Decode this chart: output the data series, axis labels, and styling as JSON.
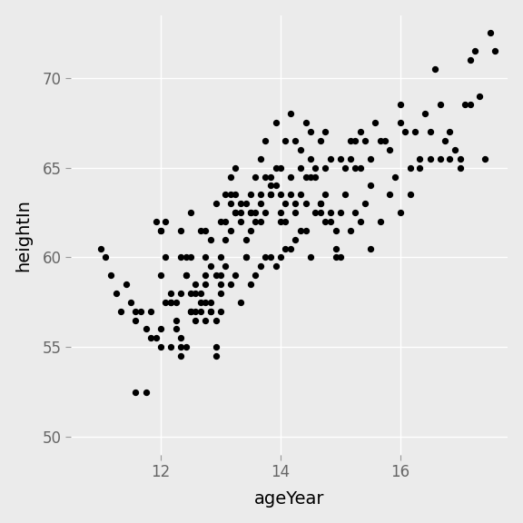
{
  "title": "",
  "xlabel": "ageYear",
  "ylabel": "heightIn",
  "xlim": [
    10.5,
    17.8
  ],
  "ylim": [
    49,
    73.5
  ],
  "xticks": [
    12,
    14,
    16
  ],
  "yticks": [
    50,
    55,
    60,
    65,
    70
  ],
  "background_color": "#EBEBEB",
  "grid_color": "#FFFFFF",
  "dot_color": "#000000",
  "dot_size": 18,
  "x": [
    11.58,
    11.58,
    11.75,
    11.83,
    11.92,
    12.0,
    12.0,
    12.0,
    12.08,
    12.08,
    12.17,
    12.17,
    12.17,
    12.25,
    12.25,
    12.33,
    12.33,
    12.33,
    12.33,
    12.42,
    12.42,
    12.42,
    12.5,
    12.5,
    12.5,
    12.5,
    12.58,
    12.58,
    12.58,
    12.67,
    12.67,
    12.67,
    12.75,
    12.75,
    12.75,
    12.75,
    12.83,
    12.83,
    12.83,
    12.83,
    12.92,
    12.92,
    12.92,
    12.92,
    13.0,
    13.0,
    13.0,
    13.0,
    13.0,
    13.08,
    13.08,
    13.08,
    13.17,
    13.17,
    13.17,
    13.17,
    13.25,
    13.25,
    13.25,
    13.25,
    13.33,
    13.33,
    13.33,
    13.42,
    13.42,
    13.42,
    13.5,
    13.5,
    13.5,
    13.5,
    13.58,
    13.58,
    13.58,
    13.67,
    13.67,
    13.67,
    13.67,
    13.75,
    13.75,
    13.75,
    13.83,
    13.83,
    13.83,
    13.83,
    13.92,
    13.92,
    13.92,
    14.0,
    14.0,
    14.0,
    14.0,
    14.08,
    14.08,
    14.08,
    14.17,
    14.17,
    14.17,
    14.25,
    14.25,
    14.25,
    14.33,
    14.33,
    14.33,
    14.42,
    14.42,
    14.42,
    14.5,
    14.5,
    14.5,
    14.58,
    14.58,
    14.67,
    14.67,
    14.67,
    14.75,
    14.75,
    14.75,
    14.83,
    14.83,
    14.92,
    14.92,
    15.0,
    15.0,
    15.08,
    15.08,
    15.17,
    15.17,
    15.25,
    15.25,
    15.33,
    15.33,
    15.42,
    15.42,
    15.5,
    15.5,
    15.58,
    15.67,
    15.75,
    15.83,
    15.92,
    16.0,
    16.0,
    16.08,
    16.17,
    16.25,
    16.33,
    16.42,
    16.5,
    16.58,
    16.67,
    16.75,
    16.83,
    16.92,
    17.0,
    17.08,
    17.17,
    17.25,
    17.33,
    17.5,
    17.58,
    11.0,
    11.08,
    11.17,
    11.25,
    11.33,
    11.42,
    11.5,
    11.58,
    11.67,
    11.75,
    11.83,
    11.92,
    12.0,
    12.0,
    12.08,
    12.17,
    12.25,
    12.33,
    12.33,
    12.42,
    12.5,
    12.58,
    12.67,
    12.75,
    12.75,
    12.83,
    12.92,
    13.0,
    13.08,
    13.17,
    13.25,
    13.33,
    13.42,
    13.5,
    13.58,
    13.67,
    13.75,
    13.83,
    13.92,
    14.0,
    14.08,
    14.17,
    14.25,
    14.33,
    14.42,
    14.5,
    14.58,
    14.67,
    14.75,
    14.83,
    14.92,
    15.0,
    15.17,
    15.25,
    15.33,
    15.5,
    15.67,
    15.83,
    16.0,
    16.17,
    16.33,
    16.5,
    16.67,
    16.83,
    17.0,
    17.17,
    17.42
  ],
  "y": [
    57.0,
    52.5,
    52.5,
    57.0,
    62.0,
    61.5,
    61.5,
    59.0,
    60.0,
    62.0,
    57.5,
    57.5,
    58.0,
    57.5,
    56.0,
    60.0,
    61.5,
    55.0,
    58.0,
    59.0,
    59.0,
    60.0,
    57.0,
    60.0,
    62.5,
    57.0,
    58.0,
    57.0,
    56.5,
    61.5,
    58.0,
    57.0,
    61.5,
    60.0,
    59.0,
    58.5,
    61.0,
    57.5,
    59.5,
    57.0,
    55.0,
    54.5,
    63.0,
    59.0,
    60.0,
    62.0,
    59.0,
    58.0,
    57.0,
    63.5,
    62.0,
    61.0,
    64.5,
    61.5,
    63.0,
    63.5,
    63.5,
    65.0,
    62.5,
    62.5,
    62.0,
    63.0,
    62.5,
    63.0,
    60.0,
    61.0,
    61.5,
    62.5,
    63.5,
    62.5,
    64.5,
    62.5,
    62.0,
    65.5,
    63.0,
    63.5,
    62.0,
    66.5,
    62.5,
    64.5,
    63.5,
    64.5,
    64.0,
    63.5,
    65.0,
    67.5,
    64.0,
    65.0,
    62.5,
    63.5,
    62.0,
    63.0,
    62.0,
    66.5,
    68.0,
    63.5,
    64.5,
    62.5,
    63.0,
    66.5,
    65.0,
    63.5,
    66.0,
    64.5,
    67.5,
    63.0,
    65.5,
    64.5,
    67.0,
    65.0,
    64.5,
    66.5,
    62.5,
    63.0,
    67.0,
    63.5,
    65.0,
    62.0,
    65.5,
    60.0,
    61.5,
    65.5,
    62.5,
    65.0,
    63.5,
    66.5,
    65.5,
    66.5,
    65.0,
    65.0,
    67.0,
    66.5,
    63.0,
    64.0,
    65.5,
    67.5,
    66.5,
    66.5,
    66.0,
    64.5,
    67.5,
    68.5,
    67.0,
    65.0,
    67.0,
    65.5,
    68.0,
    67.0,
    70.5,
    68.5,
    66.5,
    67.0,
    66.0,
    65.5,
    68.5,
    71.0,
    71.5,
    69.0,
    72.5,
    71.5,
    60.5,
    60.0,
    59.0,
    58.0,
    57.0,
    58.5,
    57.5,
    56.5,
    57.0,
    56.0,
    55.5,
    55.5,
    55.0,
    56.0,
    57.5,
    55.0,
    56.5,
    55.5,
    54.5,
    55.0,
    58.0,
    58.5,
    57.5,
    57.5,
    56.5,
    57.0,
    56.5,
    58.5,
    59.5,
    58.5,
    59.0,
    57.5,
    60.0,
    58.5,
    59.0,
    59.5,
    60.0,
    60.0,
    59.5,
    60.0,
    60.5,
    60.5,
    61.0,
    61.5,
    61.5,
    60.0,
    62.5,
    63.0,
    62.0,
    62.5,
    60.5,
    60.0,
    61.5,
    62.5,
    62.0,
    60.5,
    62.0,
    63.5,
    62.5,
    63.5,
    65.0,
    65.5,
    65.5,
    65.5,
    65.0,
    68.5,
    65.5
  ]
}
